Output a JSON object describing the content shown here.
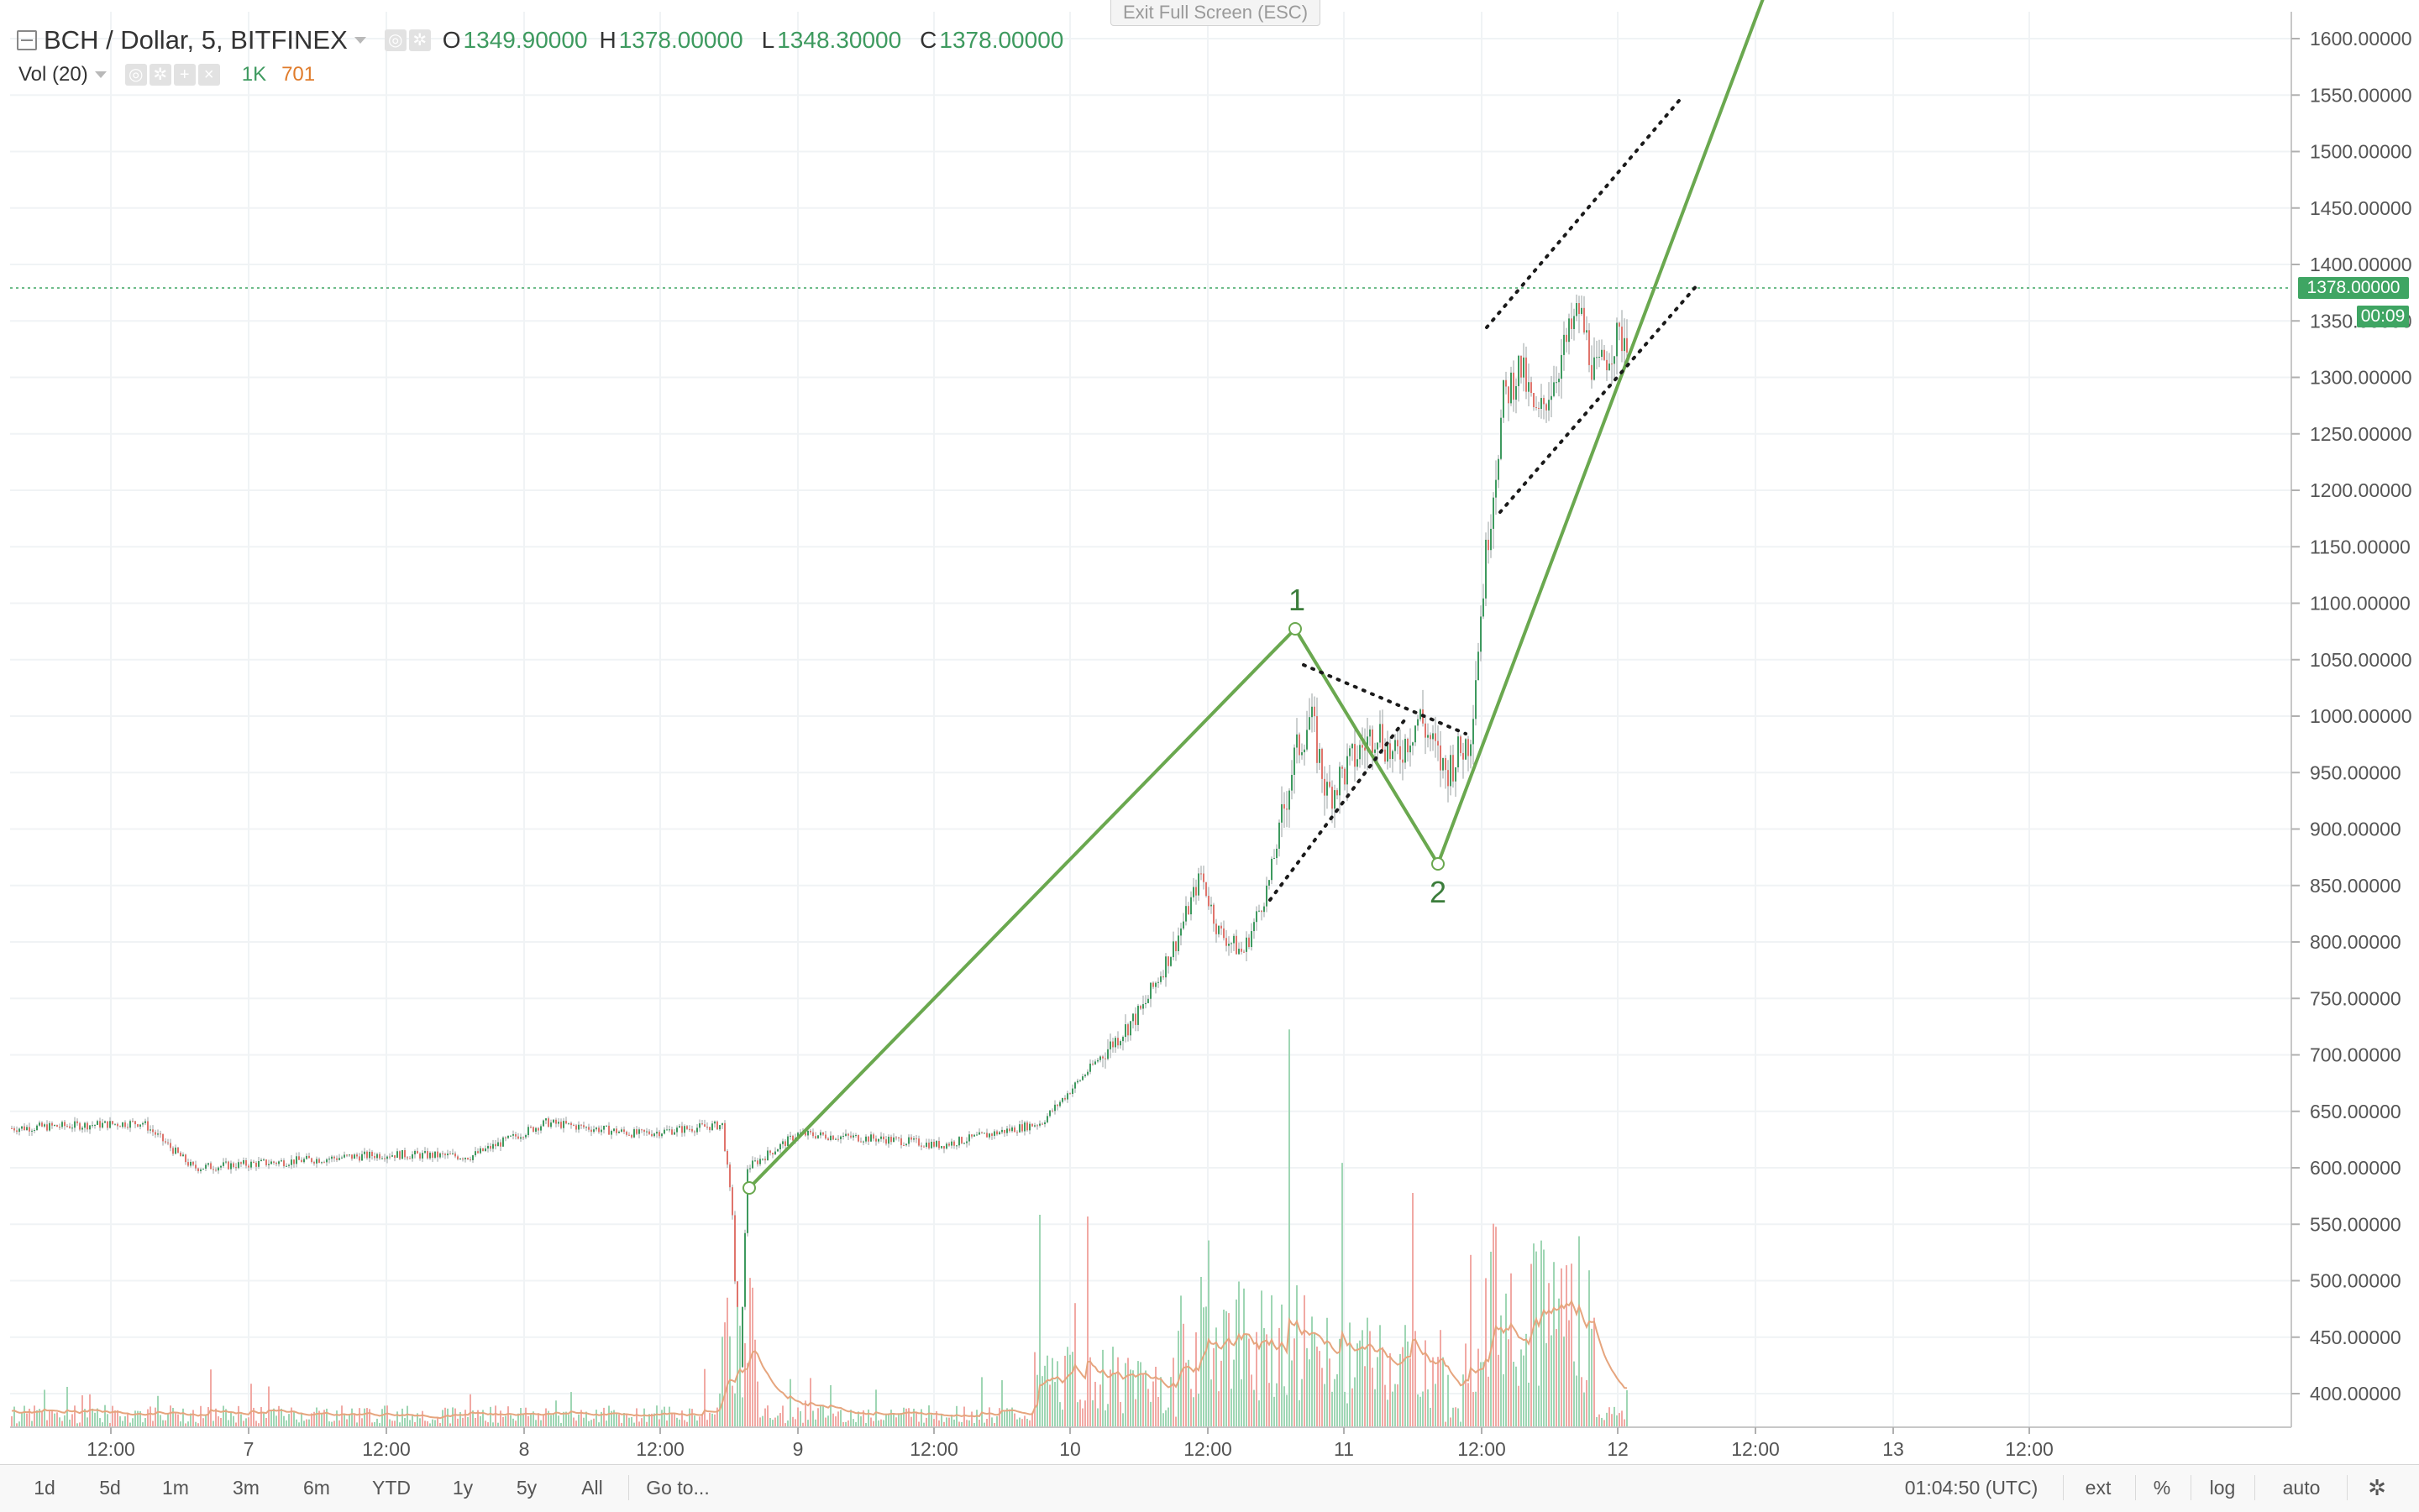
{
  "legend": {
    "symbol": "BCH / Dollar, 5, BITFINEX",
    "open_key": "O",
    "open": "1349.90000",
    "high_key": "H",
    "high": "1378.00000",
    "low_key": "L",
    "low": "1348.30000",
    "close_key": "C",
    "close": "1378.00000",
    "volume_title": "Vol (20)",
    "volume_value": "1K",
    "volume_ma_value": "701"
  },
  "exit_fullscreen": "Exit Full Screen (ESC)",
  "last_price": {
    "label": "1378.00000",
    "countdown": "00:09"
  },
  "wave_labels": [
    "1",
    "2"
  ],
  "price_axis": [
    "1600.00000",
    "1550.00000",
    "1500.00000",
    "1450.00000",
    "1400.00000",
    "1350.00000",
    "1300.00000",
    "1250.00000",
    "1200.00000",
    "1150.00000",
    "1100.00000",
    "1050.00000",
    "1000.00000",
    "950.00000",
    "900.00000",
    "850.00000",
    "800.00000",
    "750.00000",
    "700.00000",
    "650.00000",
    "600.00000",
    "550.00000",
    "500.00000",
    "450.00000",
    "400.00000"
  ],
  "time_axis": [
    "12:00",
    "7",
    "12:00",
    "8",
    "12:00",
    "9",
    "12:00",
    "10",
    "12:00",
    "11",
    "12:00",
    "12",
    "12:00",
    "13",
    "12:00"
  ],
  "toolbar": {
    "timeframes": [
      "1d",
      "5d",
      "1m",
      "3m",
      "6m",
      "YTD",
      "1y",
      "5y",
      "All"
    ],
    "goto": "Go to...",
    "clock": "01:04:50 (UTC)",
    "ext": "ext",
    "percent": "%",
    "log": "log",
    "auto": "auto"
  },
  "colors": {
    "up": "#3e9a5f",
    "down": "#e0746c",
    "wave_line": "#6aa84f",
    "accent": "#3fa563",
    "volume_ma": "#e6a57e"
  },
  "icons": [
    "collapse-box-icon",
    "eye-icon",
    "gear-icon",
    "plus-icon",
    "close-icon",
    "settings-icon"
  ],
  "chart_data": {
    "type": "candlestick",
    "series": [
      {
        "name": "BCH / Dollar",
        "x": [
          "12:00",
          "7",
          "12:00",
          "8",
          "12:00",
          "9",
          "12:00",
          "10",
          "12:00",
          "11",
          "12:00",
          "12"
        ],
        "close": [
          630,
          600,
          615,
          610,
          630,
          600,
          625,
          650,
          840,
          930,
          1300,
          1345
        ]
      }
    ],
    "ylim": [
      370,
      1620
    ],
    "scale": "linear",
    "grid": true
  }
}
